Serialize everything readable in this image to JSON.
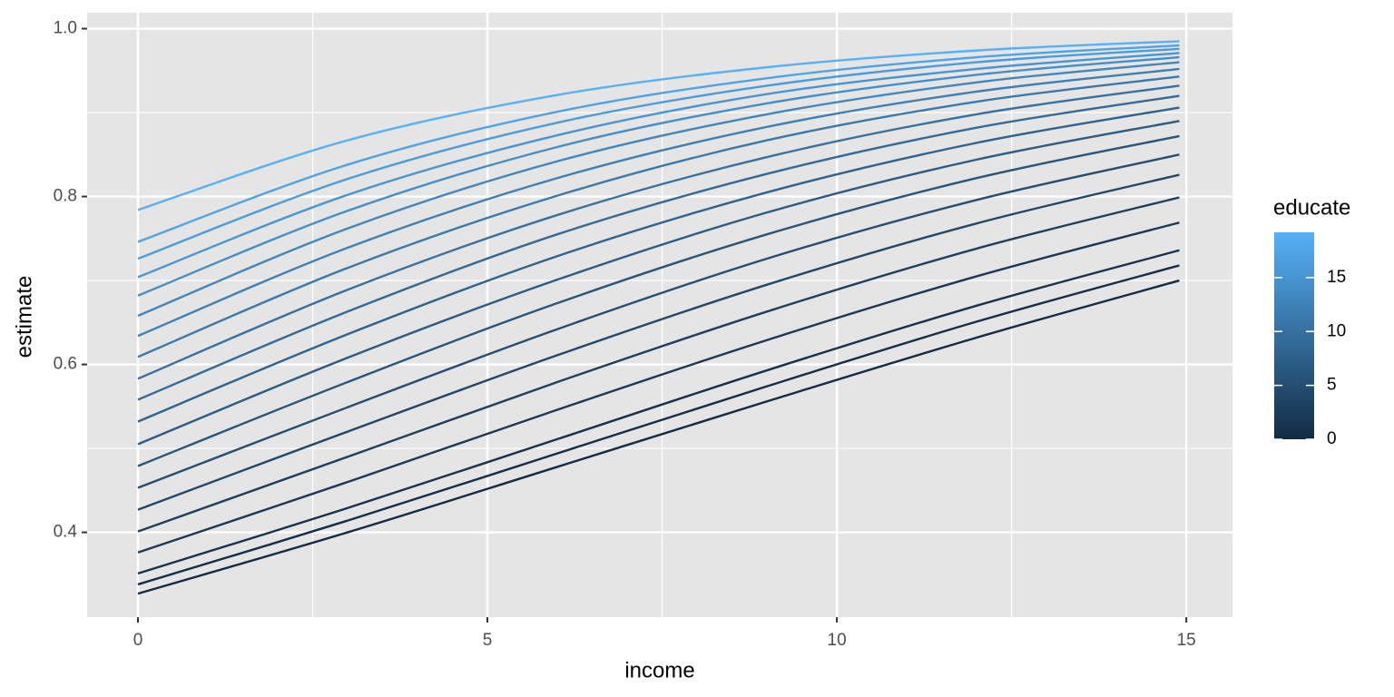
{
  "chart_data": {
    "type": "line",
    "x_label": "income",
    "y_label": "estimate",
    "x": [
      0,
      3,
      6,
      9,
      12,
      14.9
    ],
    "xlim": [
      -0.727,
      15.66
    ],
    "ylim": [
      0.299,
      1.019
    ],
    "xticks": [
      0,
      5,
      10,
      15
    ],
    "xminor": [
      2.5,
      7.5,
      12.5
    ],
    "yticks": [
      {
        "value": 1,
        "label": "1.0"
      },
      0.8,
      0.6,
      0.4
    ],
    "yminor": [
      0.5,
      0.7,
      0.9
    ],
    "grid": true,
    "panel_color": "#e5e5e5",
    "colorbar": {
      "title": "educate",
      "lim": [
        0,
        19.2
      ],
      "ticks": [
        0,
        5,
        10,
        15
      ],
      "colors": [
        "#132B43",
        "#56B1F7"
      ]
    },
    "series": [
      {
        "color": "#132B43",
        "values": [
          0.327,
          0.4,
          0.478,
          0.556,
          0.632,
          0.7
        ]
      },
      {
        "color": "#152E48",
        "values": [
          0.338,
          0.414,
          0.494,
          0.574,
          0.651,
          0.718
        ]
      },
      {
        "color": "#17324C",
        "values": [
          0.351,
          0.429,
          0.511,
          0.593,
          0.67,
          0.736
        ]
      },
      {
        "color": "#1A3956",
        "values": [
          0.376,
          0.46,
          0.546,
          0.629,
          0.705,
          0.769
        ]
      },
      {
        "color": "#1E405F",
        "values": [
          0.401,
          0.49,
          0.579,
          0.663,
          0.738,
          0.799
        ]
      },
      {
        "color": "#214769",
        "values": [
          0.427,
          0.52,
          0.611,
          0.695,
          0.768,
          0.826
        ]
      },
      {
        "color": "#254E72",
        "values": [
          0.453,
          0.549,
          0.642,
          0.726,
          0.796,
          0.85
        ]
      },
      {
        "color": "#28557C",
        "values": [
          0.479,
          0.579,
          0.673,
          0.755,
          0.822,
          0.872
        ]
      },
      {
        "color": "#2C5C85",
        "values": [
          0.505,
          0.608,
          0.701,
          0.781,
          0.844,
          0.89
        ]
      },
      {
        "color": "#2F638F",
        "values": [
          0.532,
          0.636,
          0.729,
          0.805,
          0.864,
          0.906
        ]
      },
      {
        "color": "#336A98",
        "values": [
          0.558,
          0.663,
          0.755,
          0.827,
          0.882,
          0.92
        ]
      },
      {
        "color": "#3671A2",
        "values": [
          0.583,
          0.689,
          0.778,
          0.847,
          0.898,
          0.932
        ]
      },
      {
        "color": "#3A79AB",
        "values": [
          0.609,
          0.715,
          0.801,
          0.867,
          0.913,
          0.943
        ]
      },
      {
        "color": "#3D80B5",
        "values": [
          0.634,
          0.739,
          0.822,
          0.883,
          0.925,
          0.952
        ]
      },
      {
        "color": "#4187BE",
        "values": [
          0.658,
          0.762,
          0.842,
          0.898,
          0.936,
          0.96
        ]
      },
      {
        "color": "#448EC8",
        "values": [
          0.682,
          0.783,
          0.859,
          0.911,
          0.945,
          0.966
        ]
      },
      {
        "color": "#4895D1",
        "values": [
          0.704,
          0.802,
          0.873,
          0.922,
          0.952,
          0.971
        ]
      },
      {
        "color": "#4B9CDB",
        "values": [
          0.726,
          0.821,
          0.888,
          0.932,
          0.96,
          0.976
        ]
      },
      {
        "color": "#4FA3E4",
        "values": [
          0.746,
          0.838,
          0.901,
          0.941,
          0.966,
          0.98
        ]
      },
      {
        "color": "#56B1F7",
        "values": [
          0.784,
          0.867,
          0.921,
          0.954,
          0.974,
          0.985
        ]
      }
    ]
  }
}
